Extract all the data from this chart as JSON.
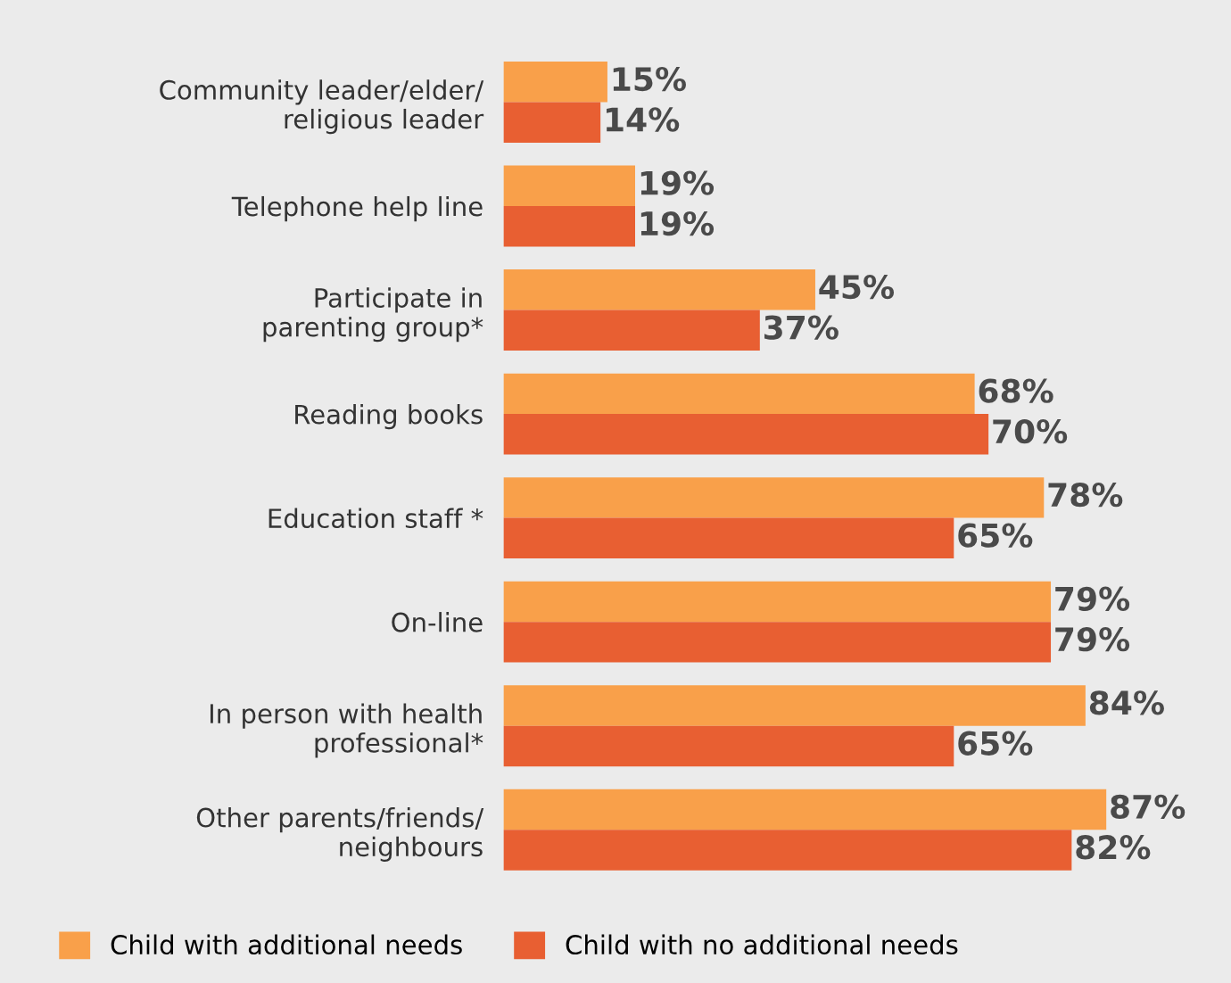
{
  "chart_data": {
    "type": "bar",
    "orientation": "horizontal",
    "categories": [
      "Community leader/elder/\nreligious leader",
      "Telephone help line",
      "Participate in\nparenting group*",
      "Reading books",
      "Education staff *",
      "On-line",
      "In person with health\nprofessional*",
      "Other parents/friends/\nneighbours"
    ],
    "series": [
      {
        "name": "Child with additional needs",
        "color": "#f9a04a",
        "values": [
          15,
          19,
          45,
          68,
          78,
          79,
          84,
          87
        ],
        "value_labels": [
          "15%",
          "19%",
          "45%",
          "68%",
          "78%",
          "79%",
          "84%",
          "87%"
        ]
      },
      {
        "name": "Child with no additional needs",
        "color": "#e85f32",
        "values": [
          14,
          19,
          37,
          70,
          65,
          79,
          65,
          82
        ],
        "value_labels": [
          "14%",
          "19%",
          "37%",
          "70%",
          "65%",
          "79%",
          "65%",
          "82%"
        ]
      }
    ],
    "xlim": [
      0,
      105
    ],
    "tick_labels": "y",
    "legend": "bottom left"
  }
}
